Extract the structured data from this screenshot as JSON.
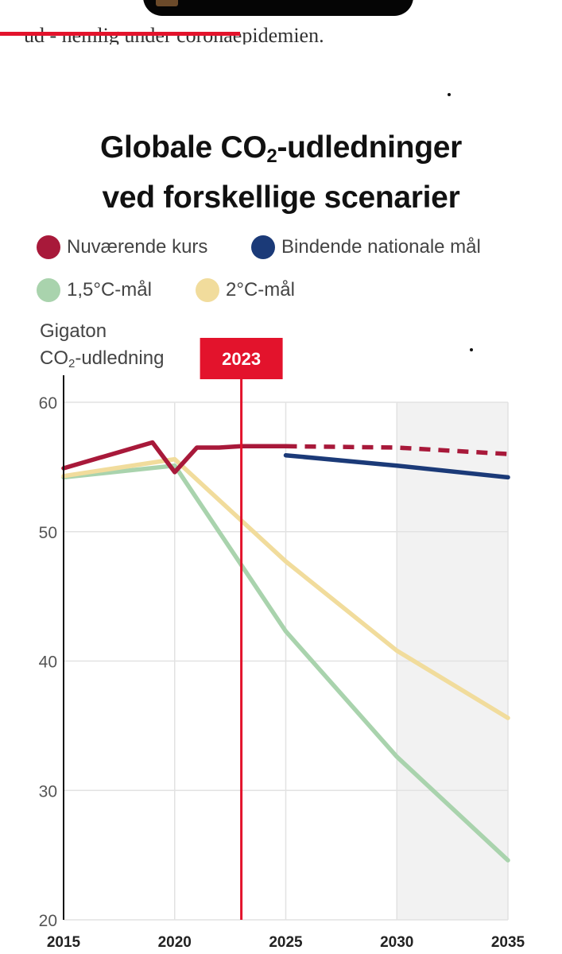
{
  "article_snippet": "ud - nemlig under coronaepidemien.",
  "colors": {
    "accent": "#e3132c",
    "current_course": "#a8193a",
    "binding_targets": "#1b3a78",
    "target_1_5": "#a9d3ad",
    "target_2": "#f1dc9c"
  },
  "chart_data": {
    "type": "line",
    "title_line1_pre": "Globale CO",
    "title_line1_sub": "2",
    "title_line1_post": "-udledninger",
    "title_line2": "ved forskellige scenarier",
    "ylabel_line1": "Gigaton",
    "ylabel_line2_pre": "CO",
    "ylabel_line2_sub": "2",
    "ylabel_line2_post": "-udledning",
    "ylim": [
      20,
      60
    ],
    "yticks": [
      "60",
      "50",
      "40",
      "30",
      "20"
    ],
    "xlim": [
      2015,
      2035
    ],
    "xticks": [
      "2015",
      "2020",
      "2025",
      "2030",
      "2035"
    ],
    "grid": true,
    "projection_shading_from": 2030,
    "marker": {
      "label": "2023",
      "x": 2023
    },
    "legend": [
      {
        "key": "current",
        "label": "Nuværende kurs",
        "color": "#a8193a"
      },
      {
        "key": "binding",
        "label": "Bindende nationale mål",
        "color": "#1b3a78"
      },
      {
        "key": "t15",
        "label": "1,5°C-mål",
        "color": "#a9d3ad"
      },
      {
        "key": "t2",
        "label": "2°C-mål",
        "color": "#f1dc9c"
      }
    ],
    "series": [
      {
        "key": "t15",
        "name": "1,5°C-mål",
        "color": "#a9d3ad",
        "points": [
          [
            2015,
            54.2
          ],
          [
            2020,
            55.1
          ],
          [
            2025,
            42.3
          ],
          [
            2030,
            32.6
          ],
          [
            2035,
            24.6
          ]
        ]
      },
      {
        "key": "t2",
        "name": "2°C-mål",
        "color": "#f1dc9c",
        "points": [
          [
            2015,
            54.3
          ],
          [
            2020,
            55.6
          ],
          [
            2025,
            47.7
          ],
          [
            2030,
            40.8
          ],
          [
            2035,
            35.6
          ]
        ]
      },
      {
        "key": "binding",
        "name": "Bindende nationale mål",
        "color": "#1b3a78",
        "points": [
          [
            2025,
            55.9
          ],
          [
            2030,
            55.1
          ],
          [
            2035,
            54.2
          ]
        ]
      },
      {
        "key": "current",
        "name": "Nuværende kurs",
        "color": "#a8193a",
        "points": [
          [
            2015,
            54.9
          ],
          [
            2019,
            56.9
          ],
          [
            2020,
            54.6
          ],
          [
            2021,
            56.5
          ],
          [
            2022,
            56.5
          ],
          [
            2023,
            56.6
          ],
          [
            2025,
            56.6
          ]
        ],
        "projection": [
          [
            2025,
            56.6
          ],
          [
            2030,
            56.5
          ],
          [
            2035,
            56.0
          ]
        ]
      }
    ]
  }
}
